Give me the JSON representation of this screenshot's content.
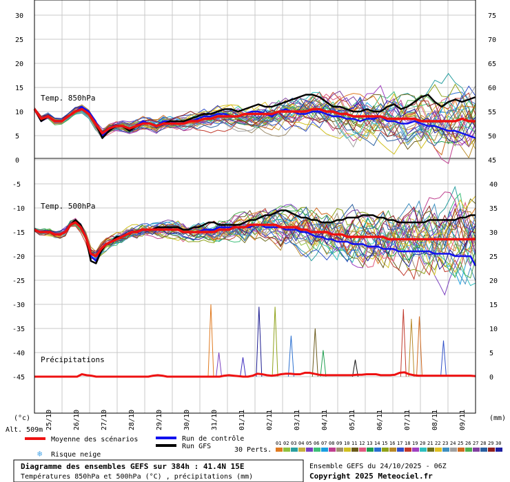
{
  "chart_data": {
    "type": "line",
    "panels": {
      "t850": {
        "label": "Temp. 850hPa",
        "y_left_ticks": [
          0,
          5,
          10,
          15,
          20,
          25,
          30
        ],
        "y_right_ticks": [
          45,
          50,
          55,
          60,
          65,
          70,
          75
        ],
        "mean": [
          10.5,
          8.5,
          9,
          8,
          8,
          9,
          10,
          10.5,
          9.5,
          7.5,
          5.5,
          6.5,
          7,
          7,
          6.5,
          7,
          7.5,
          7.5,
          7,
          7.5,
          7.5,
          7.5,
          7.5,
          8,
          8,
          8.5,
          8.5,
          9,
          9,
          9,
          9,
          9.5,
          9.5,
          9.5,
          9.5,
          9.5,
          10,
          10,
          10,
          10,
          10,
          10.5,
          10.5,
          10,
          10,
          9.5,
          9.5,
          9,
          9,
          9,
          9,
          9,
          8.5,
          8.5,
          8.5,
          8.5,
          8.5,
          8,
          8,
          8,
          8,
          8,
          8,
          8.5,
          8,
          8
        ],
        "control": [
          10.5,
          8,
          9,
          8,
          8,
          9,
          10,
          11,
          10,
          8,
          5,
          6,
          7,
          7,
          6.5,
          7,
          8,
          7.5,
          7,
          8,
          8,
          7.5,
          7.5,
          8,
          8.5,
          9,
          9,
          9.5,
          9.5,
          9,
          9,
          9.5,
          10,
          10,
          9.5,
          9,
          10,
          10.5,
          10,
          9.5,
          9.5,
          10,
          10,
          9.5,
          9,
          9,
          8.5,
          8.5,
          8,
          8.5,
          8.5,
          9,
          8,
          8,
          7.5,
          7.5,
          8,
          7.5,
          7,
          7,
          6.5,
          6,
          6,
          5.5,
          5,
          4.5
        ],
        "gfs": [
          10.5,
          8,
          9,
          8,
          8,
          9,
          10,
          10.5,
          9.5,
          7.5,
          4.5,
          6,
          7,
          7,
          6,
          7,
          7.5,
          7.5,
          7,
          7.5,
          8,
          8,
          8,
          8.5,
          9,
          9.5,
          9.5,
          10,
          10.5,
          10.5,
          10,
          10.5,
          11,
          11.5,
          11,
          11,
          11.5,
          12,
          12.5,
          13,
          13.5,
          13.5,
          13,
          12,
          11,
          11,
          10.5,
          10,
          10,
          10.5,
          10,
          10,
          11,
          11.5,
          10.5,
          11,
          12,
          13,
          13.5,
          12,
          11,
          12,
          12.5,
          12,
          12.5,
          13
        ]
      },
      "t500": {
        "label": "Temp. 500hPa",
        "y_left_ticks": [
          -5,
          -10,
          -15,
          -20,
          -25,
          -30,
          -35,
          -40,
          -45
        ],
        "y_right_ticks": [
          40,
          35,
          30,
          25,
          20,
          15,
          10,
          5,
          0
        ],
        "mean": [
          -14.5,
          -15,
          -15,
          -15,
          -15.5,
          -15.5,
          -15,
          -13.5,
          -13,
          -14,
          -16,
          -19.5,
          -20,
          -18.5,
          -17.5,
          -17,
          -16.5,
          -16,
          -15.5,
          -15,
          -15,
          -14.5,
          -14.5,
          -14.5,
          -14.5,
          -14.5,
          -14.5,
          -14.5,
          -14.5,
          -15,
          -15,
          -15,
          -15,
          -15,
          -15,
          -15,
          -14.5,
          -14.5,
          -14.5,
          -14,
          -14,
          -14,
          -13.5,
          -13.5,
          -13.5,
          -13.5,
          -13.5,
          -13.5,
          -14,
          -14,
          -14,
          -14,
          -14.5,
          -14.5,
          -15,
          -15,
          -15,
          -15,
          -15.5,
          -15.5,
          -15.5,
          -16,
          -16,
          -16,
          -16,
          -16,
          -16,
          -16,
          -16,
          -16.5,
          -16.5,
          -16.5,
          -16.5,
          -16.5,
          -16.5,
          -16.5,
          -16.5,
          -16.5,
          -16.5,
          -16.5,
          -16.5,
          -16.5,
          -16.5,
          -16.5,
          -16.5,
          -16.5,
          -16.5
        ],
        "control": [
          -14.5,
          -15,
          -15,
          -15,
          -15.5,
          -15.5,
          -15,
          -13.5,
          -12.5,
          -14,
          -16,
          -20,
          -21,
          -19,
          -17.5,
          -17,
          -16,
          -16,
          -15.5,
          -15,
          -15,
          -14.5,
          -14.5,
          -14.5,
          -14,
          -14,
          -14,
          -14.5,
          -14.5,
          -15,
          -15,
          -15,
          -15,
          -14.5,
          -14.5,
          -14.5,
          -14,
          -14,
          -14,
          -14,
          -14,
          -14,
          -14,
          -13.5,
          -13.5,
          -14,
          -14,
          -14,
          -14,
          -14.5,
          -14.5,
          -14.5,
          -15,
          -15,
          -15.5,
          -16,
          -16,
          -16.5,
          -16.5,
          -17,
          -17,
          -17,
          -17.5,
          -17.5,
          -17.5,
          -18,
          -18,
          -18,
          -18.5,
          -18.5,
          -18.5,
          -19,
          -19,
          -19,
          -19,
          -19,
          -19,
          -19,
          -19.5,
          -19.5,
          -19.5,
          -19.5,
          -20,
          -20,
          -20,
          -20,
          -22
        ],
        "gfs": [
          -14.5,
          -15,
          -15,
          -15,
          -15.5,
          -15.5,
          -15,
          -13.5,
          -12.5,
          -13.5,
          -16,
          -21,
          -21.5,
          -19,
          -17.5,
          -17,
          -16,
          -16,
          -15.5,
          -15,
          -15,
          -14.5,
          -14.5,
          -14.5,
          -14,
          -14,
          -14,
          -14,
          -14,
          -14.5,
          -14.5,
          -14,
          -14,
          -13.5,
          -13,
          -13,
          -13.5,
          -13.5,
          -13.5,
          -13.5,
          -13.5,
          -13,
          -12.5,
          -12.5,
          -12,
          -11.5,
          -11.5,
          -11,
          -10.5,
          -10.5,
          -11,
          -11.5,
          -12,
          -12,
          -12.5,
          -12.5,
          -13,
          -13,
          -13,
          -12.5,
          -12.5,
          -12,
          -12,
          -12,
          -11.5,
          -11.5,
          -11.5,
          -12,
          -12,
          -12.5,
          -12.5,
          -13,
          -13,
          -13,
          -13,
          -13,
          -13,
          -12.5,
          -12.5,
          -12.5,
          -12.5,
          -12.5,
          -12.5,
          -12,
          -12,
          -11.5,
          -11.5
        ]
      },
      "precip": {
        "label": "Précipitations",
        "right_ticks_mm": [
          0,
          5,
          10,
          15
        ],
        "mean_mm": [
          0,
          0,
          0,
          0,
          0,
          0,
          0,
          0,
          0,
          0,
          0.5,
          0.3,
          0.2,
          0,
          0,
          0,
          0,
          0,
          0,
          0,
          0,
          0,
          0,
          0,
          0,
          0.2,
          0.3,
          0.2,
          0,
          0,
          0,
          0,
          0,
          0,
          0,
          0,
          0,
          0,
          0,
          0,
          0.2,
          0.3,
          0.2,
          0.1,
          0,
          0,
          0.2,
          0.6,
          0.5,
          0.3,
          0.2,
          0.3,
          0.5,
          0.6,
          0.6,
          0.5,
          0.5,
          0.8,
          0.8,
          0.6,
          0.4,
          0.3,
          0.3,
          0.3,
          0.3,
          0.3,
          0.3,
          0.3,
          0.4,
          0.4,
          0.5,
          0.5,
          0.5,
          0.3,
          0.3,
          0.3,
          0.4,
          0.8,
          0.9,
          0.5,
          0.3,
          0.2,
          0.2,
          0.2,
          0.2,
          0.2,
          0.2,
          0.2,
          0.2,
          0.2,
          0.2,
          0.2,
          0.2,
          0.1
        ],
        "spikes_mm": [
          {
            "x": 22,
            "v": 15,
            "c": "#e07a20"
          },
          {
            "x": 23,
            "v": 5,
            "c": "#7a3fbf"
          },
          {
            "x": 26,
            "v": 4,
            "c": "#3f2fbf"
          },
          {
            "x": 28,
            "v": 14.5,
            "c": "#1a1a8f"
          },
          {
            "x": 30,
            "v": 14.5,
            "c": "#8fa21a"
          },
          {
            "x": 32,
            "v": 8.5,
            "c": "#2a6fd0"
          },
          {
            "x": 35,
            "v": 10,
            "c": "#6a5a1a"
          },
          {
            "x": 36,
            "v": 5.5,
            "c": "#1f9f4f"
          },
          {
            "x": 40,
            "v": 3.5,
            "c": "#111111"
          },
          {
            "x": 46,
            "v": 14,
            "c": "#c0392b"
          },
          {
            "x": 47,
            "v": 12,
            "c": "#b88a2a"
          },
          {
            "x": 48,
            "v": 12.5,
            "c": "#d06a20"
          },
          {
            "x": 51,
            "v": 7.5,
            "c": "#3050c8"
          }
        ]
      }
    },
    "x_labels": [
      "25/10",
      "26/10",
      "27/10",
      "28/10",
      "29/10",
      "30/10",
      "31/10",
      "01/11",
      "02/11",
      "03/11",
      "04/11",
      "05/11",
      "06/11",
      "07/11",
      "08/11",
      "09/11"
    ],
    "x_steps_per_day": 4,
    "colors": {
      "mean": "#ee1111",
      "control": "#1111ee",
      "gfs": "#000000"
    },
    "legend": {
      "mean": "Moyenne des scénarios",
      "control": "Run de contrôle",
      "gfs": "Run GFS",
      "snow": "Risque neige",
      "perts": "30 Perts."
    },
    "pert_numbers": [
      "01",
      "02",
      "03",
      "04",
      "05",
      "06",
      "07",
      "08",
      "09",
      "10",
      "11",
      "12",
      "13",
      "14",
      "15",
      "16",
      "17",
      "18",
      "19",
      "20",
      "21",
      "22",
      "23",
      "24",
      "25",
      "26",
      "27",
      "28",
      "29",
      "30"
    ],
    "pert_colors": [
      "#e07a20",
      "#8fc03f",
      "#2a9fa0",
      "#c8b03f",
      "#7a3fbf",
      "#3fbf7a",
      "#1a9fe0",
      "#bf3f8f",
      "#9f8f6f",
      "#d0c020",
      "#6a5a1a",
      "#e05a80",
      "#1f9f4f",
      "#2a6fd0",
      "#8fa21a",
      "#b88a2a",
      "#3050c8",
      "#c0392b",
      "#a040c0",
      "#2fbfbf",
      "#6f6f1f",
      "#e0c020",
      "#3f8fbf",
      "#a0a0a0",
      "#d06a20",
      "#50b050",
      "#8040a0",
      "#2a5fa0",
      "#8f1f1f",
      "#1f1fa0"
    ],
    "ylabel_left": "(°c)",
    "ylabel_right": "(mm)",
    "altitude": "Alt. 509m",
    "title": "Diagramme des ensembles GEFS sur 384h : 41.4N 15E",
    "subtitle": "Températures 850hPa et 500hPa (°C) , précipitations (mm)",
    "ensemble_info": "Ensemble GEFS du 24/10/2025 - 06Z",
    "copyright": "Copyright 2025 Meteociel.fr"
  }
}
